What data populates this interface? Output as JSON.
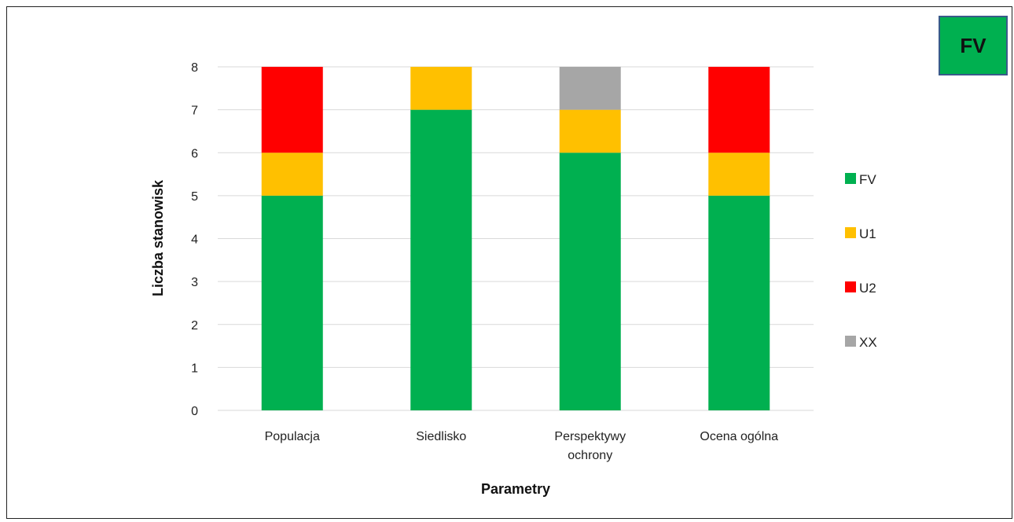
{
  "badge": {
    "text": "FV",
    "color": "#00b050"
  },
  "chart_data": {
    "type": "bar",
    "stacked": true,
    "categories": [
      [
        "Populacja"
      ],
      [
        "Siedlisko"
      ],
      [
        "Perspektywy",
        "ochrony"
      ],
      [
        "Ocena ogólna"
      ]
    ],
    "series": [
      {
        "name": "FV",
        "color": "#00b050",
        "values": [
          5,
          7,
          6,
          5
        ]
      },
      {
        "name": "U1",
        "color": "#ffc000",
        "values": [
          1,
          1,
          1,
          1
        ]
      },
      {
        "name": "U2",
        "color": "#ff0000",
        "values": [
          2,
          0,
          0,
          2
        ]
      },
      {
        "name": "XX",
        "color": "#a6a6a6",
        "values": [
          0,
          0,
          1,
          0
        ]
      }
    ],
    "xlabel": "Parametry",
    "ylabel": "Liczba stanowisk",
    "ylim": [
      0,
      8
    ],
    "yticks": [
      "0",
      "1",
      "2",
      "3",
      "4",
      "5",
      "6",
      "7",
      "8"
    ],
    "grid": true,
    "legend_position": "right"
  }
}
